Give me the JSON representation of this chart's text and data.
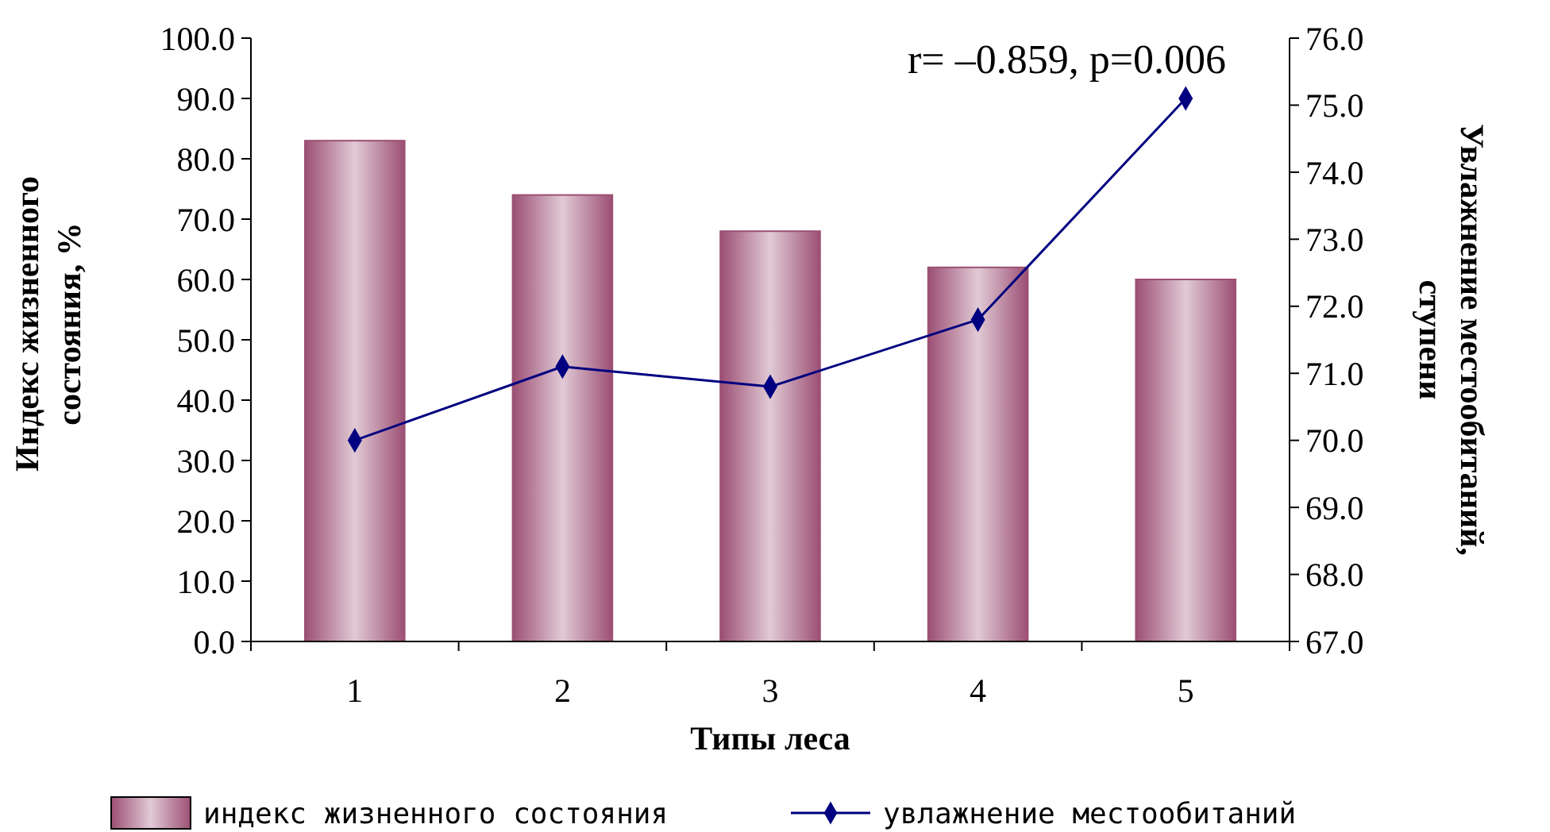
{
  "chart_data": {
    "type": "bar",
    "categories": [
      "1",
      "2",
      "3",
      "4",
      "5"
    ],
    "series": [
      {
        "name": "индекс жизненного состояния",
        "color": "#9c4f74",
        "values": [
          83,
          74,
          68,
          62,
          60
        ]
      },
      {
        "name": "увлажнение местообитаний",
        "type": "line",
        "axis": "y2",
        "color": "#000080",
        "marker": "diamond",
        "values": [
          70.0,
          71.1,
          70.8,
          71.8,
          75.1
        ]
      }
    ],
    "xlabel": "Типы леса",
    "ylabel": "Индекс жизненного состояния, %",
    "y2label": "Увлажнение местообитаний, ступени",
    "ylim": [
      0,
      100
    ],
    "yticks": [
      {
        "value": 0,
        "label": "0.0"
      },
      {
        "value": 10,
        "label": "10.0"
      },
      {
        "value": 20,
        "label": "20.0"
      },
      {
        "value": 30,
        "label": "30.0"
      },
      {
        "value": 40,
        "label": "40.0"
      },
      {
        "value": 50,
        "label": "50.0"
      },
      {
        "value": 60,
        "label": "60.0"
      },
      {
        "value": 70,
        "label": "70.0"
      },
      {
        "value": 80,
        "label": "80.0"
      },
      {
        "value": 90,
        "label": "90.0"
      },
      {
        "value": 100,
        "label": "100.0"
      }
    ],
    "y2lim": [
      67,
      76
    ],
    "y2ticks": [
      {
        "value": 67,
        "label": "67.0"
      },
      {
        "value": 68,
        "label": "68.0"
      },
      {
        "value": 69,
        "label": "69.0"
      },
      {
        "value": 70,
        "label": "70.0"
      },
      {
        "value": 71,
        "label": "71.0"
      },
      {
        "value": 72,
        "label": "72.0"
      },
      {
        "value": 73,
        "label": "73.0"
      },
      {
        "value": 74,
        "label": "74.0"
      },
      {
        "value": 75,
        "label": "75.0"
      },
      {
        "value": 76,
        "label": "76.0"
      }
    ],
    "annotations": [
      "r= –0.859,  p=0.006"
    ],
    "legend": "bottom",
    "grid": false
  }
}
